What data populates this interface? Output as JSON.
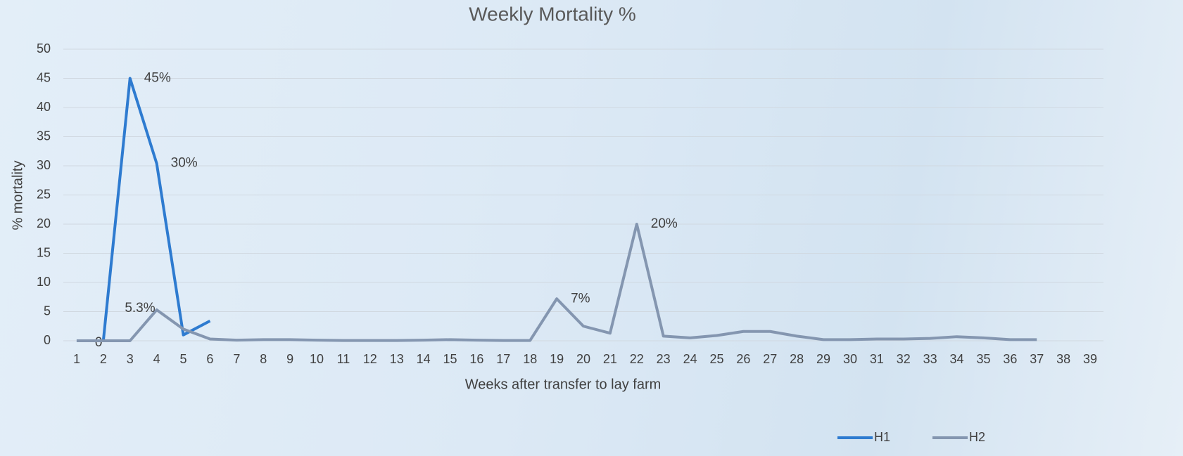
{
  "chart_data": {
    "type": "line",
    "title": "Weekly Mortality %",
    "x_label": "Weeks after transfer to lay farm",
    "y_label": "% mortality",
    "categories": [
      "1",
      "2",
      "3",
      "4",
      "5",
      "6",
      "7",
      "8",
      "9",
      "10",
      "11",
      "12",
      "13",
      "14",
      "15",
      "16",
      "17",
      "18",
      "19",
      "20",
      "21",
      "22",
      "23",
      "24",
      "25",
      "26",
      "27",
      "28",
      "29",
      "30",
      "31",
      "32",
      "33",
      "34",
      "35",
      "36",
      "37",
      "38",
      "39"
    ],
    "series": [
      {
        "name": "H1",
        "color": "#2e7bd0",
        "values": [
          0,
          0,
          45,
          30.4,
          1,
          3.4,
          null,
          null,
          null,
          null,
          null,
          null,
          null,
          null,
          null,
          null,
          null,
          null,
          null,
          null,
          null,
          null,
          null,
          null,
          null,
          null,
          null,
          null,
          null,
          null,
          null,
          null,
          null,
          null,
          null,
          null,
          null,
          null,
          null
        ],
        "value_labels": [
          null,
          "0",
          "45%",
          "30%",
          null,
          null,
          null,
          null,
          null,
          null,
          null,
          null,
          null,
          null,
          null,
          null,
          null,
          null,
          null,
          null,
          null,
          null,
          null,
          null,
          null,
          null,
          null,
          null,
          null,
          null,
          null,
          null,
          null,
          null,
          null,
          null,
          null,
          null,
          null
        ]
      },
      {
        "name": "H2",
        "color": "#8496b0",
        "values": [
          0,
          0,
          0,
          5.3,
          2,
          0.3,
          0.1,
          0.2,
          0.2,
          0.1,
          0.05,
          0.05,
          0.05,
          0.1,
          0.2,
          0.1,
          0.05,
          0.05,
          7.2,
          2.5,
          1.3,
          20,
          0.8,
          0.5,
          0.9,
          1.6,
          1.6,
          0.8,
          0.2,
          0.2,
          0.3,
          0.3,
          0.4,
          0.7,
          0.5,
          0.2,
          0.2,
          null,
          null
        ],
        "value_labels": [
          null,
          null,
          null,
          "5.3%",
          null,
          null,
          null,
          null,
          null,
          null,
          null,
          null,
          null,
          null,
          null,
          null,
          null,
          null,
          "7%",
          null,
          null,
          "20%",
          null,
          null,
          null,
          null,
          null,
          null,
          null,
          null,
          null,
          null,
          null,
          null,
          null,
          null,
          null,
          null,
          null
        ]
      }
    ],
    "ylim": [
      0,
      50
    ],
    "yticks": [
      0,
      5,
      10,
      15,
      20,
      25,
      30,
      35,
      40,
      45,
      50
    ],
    "grid": true,
    "legend": "bottom-right"
  }
}
